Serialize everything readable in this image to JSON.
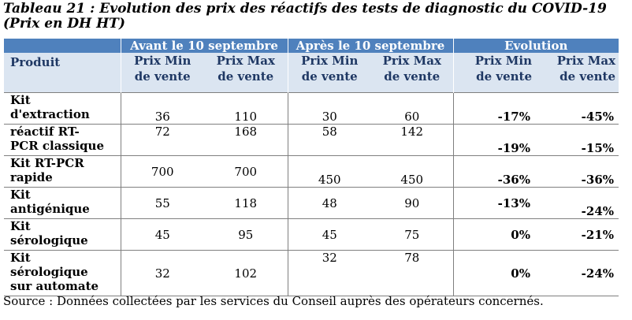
{
  "title": {
    "line1": "Tableau 21 : Evolution des prix des réactifs des tests de diagnostic du COVID-19",
    "line2": "(Prix en DH HT)"
  },
  "header": {
    "group_before": "Avant le 10 septembre",
    "group_after": "Après le 10 septembre",
    "group_evolution": "Evolution",
    "produit": "Produit",
    "min_l1": "Prix Min",
    "min_l2": "de vente",
    "max_l1": "Prix Max",
    "max_l2": "de vente"
  },
  "rows": [
    {
      "produit": [
        "Kit",
        "d'extraction"
      ],
      "avant_min": "36",
      "avant_max": "110",
      "apres_min": "30",
      "apres_max": "60",
      "evo_min": "-17%",
      "evo_max": "-45%"
    },
    {
      "produit": [
        "réactif RT-",
        "PCR classique"
      ],
      "avant_min": "72",
      "avant_max": "168",
      "apres_min": "58",
      "apres_max": "142",
      "evo_min": "-19%",
      "evo_max": "-15%"
    },
    {
      "produit": [
        "Kit RT-PCR",
        "rapide"
      ],
      "avant_min": "700",
      "avant_max": "700",
      "apres_min": "450",
      "apres_max": "450",
      "evo_min": "-36%",
      "evo_max": "-36%"
    },
    {
      "produit": [
        "Kit",
        "antigénique"
      ],
      "avant_min": "55",
      "avant_max": "118",
      "apres_min": "48",
      "apres_max": "90",
      "evo_min": "-13%",
      "evo_max": "-24%"
    },
    {
      "produit": [
        "Kit",
        "sérologique"
      ],
      "avant_min": "45",
      "avant_max": "95",
      "apres_min": "45",
      "apres_max": "75",
      "evo_min": "0%",
      "evo_max": "-21%"
    },
    {
      "produit": [
        "Kit",
        "sérologique",
        "sur automate"
      ],
      "avant_min": "32",
      "avant_max": "102",
      "apres_min": "32",
      "apres_max": "78",
      "evo_min": "0%",
      "evo_max": "-24%"
    }
  ],
  "source": "Source : Données collectées par les services du Conseil auprès des opérateurs concernés."
}
